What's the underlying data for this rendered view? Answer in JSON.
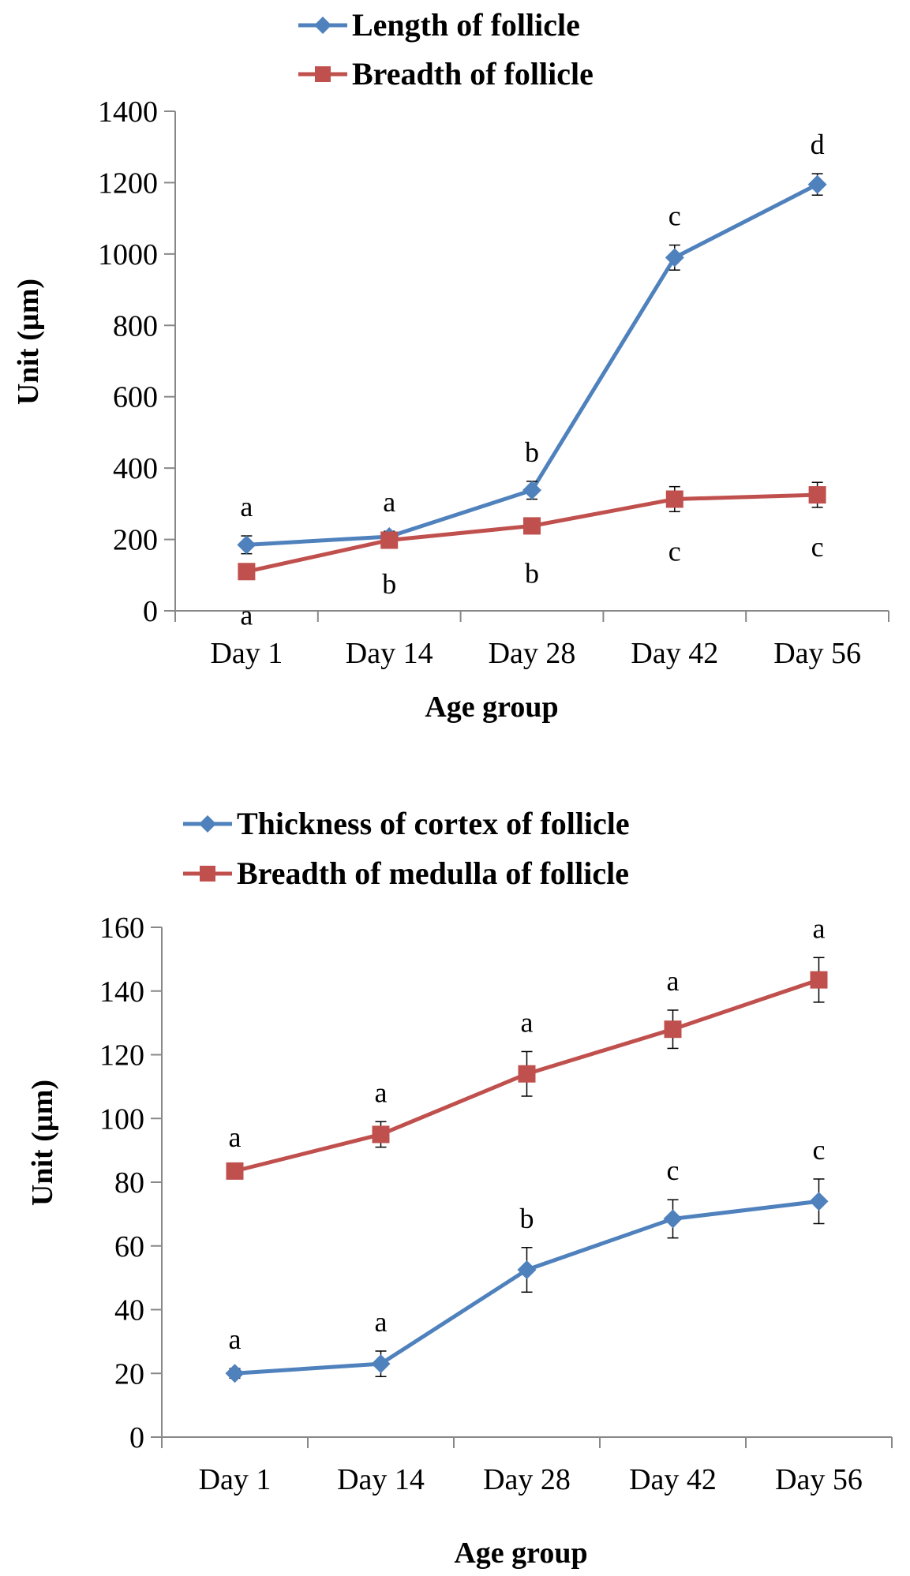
{
  "chart_data": [
    {
      "type": "line",
      "categories": [
        "Day 1",
        "Day 14",
        "Day 28",
        "Day 42",
        "Day 56"
      ],
      "xlabel": "Age group",
      "ylabel": "Unit (µm)",
      "ylim": [
        0,
        1400
      ],
      "yticks": [
        0,
        200,
        400,
        600,
        800,
        1000,
        1200,
        1400
      ],
      "grid": false,
      "legend_position": "top",
      "series": [
        {
          "name": "Length of follicle",
          "color": "#4F81BD",
          "marker": "diamond",
          "values": [
            185,
            208,
            338,
            990,
            1195
          ],
          "errors": [
            25,
            15,
            25,
            35,
            30
          ],
          "sig_labels": [
            "a",
            "a",
            "b",
            "c",
            "d"
          ],
          "sig_position": "above"
        },
        {
          "name": "Breadth of follicle",
          "color": "#C0504D",
          "marker": "square",
          "values": [
            110,
            198,
            238,
            313,
            325
          ],
          "errors": [
            12,
            12,
            22,
            35,
            35
          ],
          "sig_labels": [
            "a",
            "b",
            "b",
            "c",
            "c"
          ],
          "sig_position": "below"
        }
      ]
    },
    {
      "type": "line",
      "categories": [
        "Day 1",
        "Day 14",
        "Day 28",
        "Day 42",
        "Day 56"
      ],
      "xlabel": "Age group",
      "ylabel": "Unit (µm)",
      "ylim": [
        0,
        160
      ],
      "yticks": [
        0,
        20,
        40,
        60,
        80,
        100,
        120,
        140,
        160
      ],
      "grid": false,
      "legend_position": "top",
      "series": [
        {
          "name": "Thickness of cortex of follicle",
          "color": "#4F81BD",
          "marker": "diamond",
          "values": [
            20,
            23,
            52.5,
            68.5,
            74
          ],
          "errors": [
            1.5,
            4,
            7,
            6,
            7
          ],
          "sig_labels": [
            "a",
            "a",
            "b",
            "c",
            "c"
          ],
          "sig_position": "above"
        },
        {
          "name": "Breadth of medulla of follicle",
          "color": "#C0504D",
          "marker": "square",
          "values": [
            83.5,
            95,
            114,
            128,
            143.5
          ],
          "errors": [
            1.5,
            4,
            7,
            6,
            7
          ],
          "sig_labels": [
            "a",
            "a",
            "a",
            "a",
            "a"
          ],
          "sig_position": "above"
        }
      ]
    }
  ]
}
